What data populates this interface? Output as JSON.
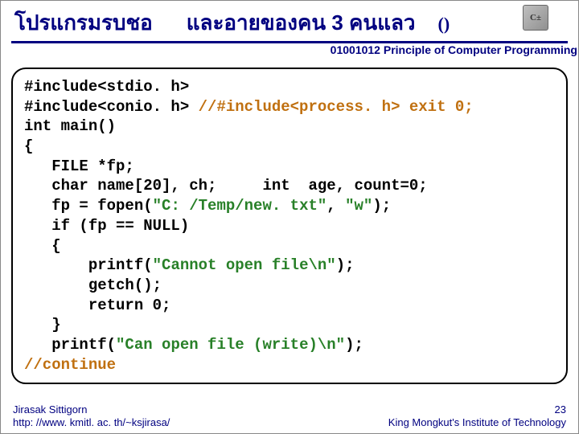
{
  "header": {
    "title_thai_1": "โปรแกรมรบชอ",
    "title_thai_2": "และอายของคน  3 คนแลว",
    "paren": "()",
    "logo_text": "C±"
  },
  "subtitle": "01001012 Principle of Computer Programming",
  "code": {
    "l1": "#include<stdio. h>",
    "l2a": "#include<conio. h> ",
    "l2b": "//#include<process. h> exit 0;",
    "l3": "int main()",
    "l4": "{",
    "l5": "   FILE *fp;",
    "l6": "   char name[20], ch;     int  age, count=0;",
    "l7a": "   fp = fopen(",
    "l7b": "\"C: /Temp/new. txt\"",
    "l7c": ", ",
    "l7d": "\"w\"",
    "l7e": ");",
    "l8": "   if (fp == NULL)",
    "l9": "   {",
    "l10a": "       printf(",
    "l10b": "\"Cannot open file\\n\"",
    "l10c": ");",
    "l11": "       getch();",
    "l12": "       return 0;",
    "l13": "   }",
    "l14a": "   printf(",
    "l14b": "\"Can open file (write)\\n\"",
    "l14c": ");",
    "l15": "//continue"
  },
  "footer": {
    "author": "Jirasak Sittigorn",
    "url": "http: //www. kmitl. ac. th/~ksjirasa/",
    "page": "23",
    "institute": "King Mongkut's Institute of Technology"
  },
  "colors": {
    "primary": "#000080",
    "comment": "#c07010",
    "string": "#288028",
    "background": "#ffffff",
    "border": "#000000"
  }
}
